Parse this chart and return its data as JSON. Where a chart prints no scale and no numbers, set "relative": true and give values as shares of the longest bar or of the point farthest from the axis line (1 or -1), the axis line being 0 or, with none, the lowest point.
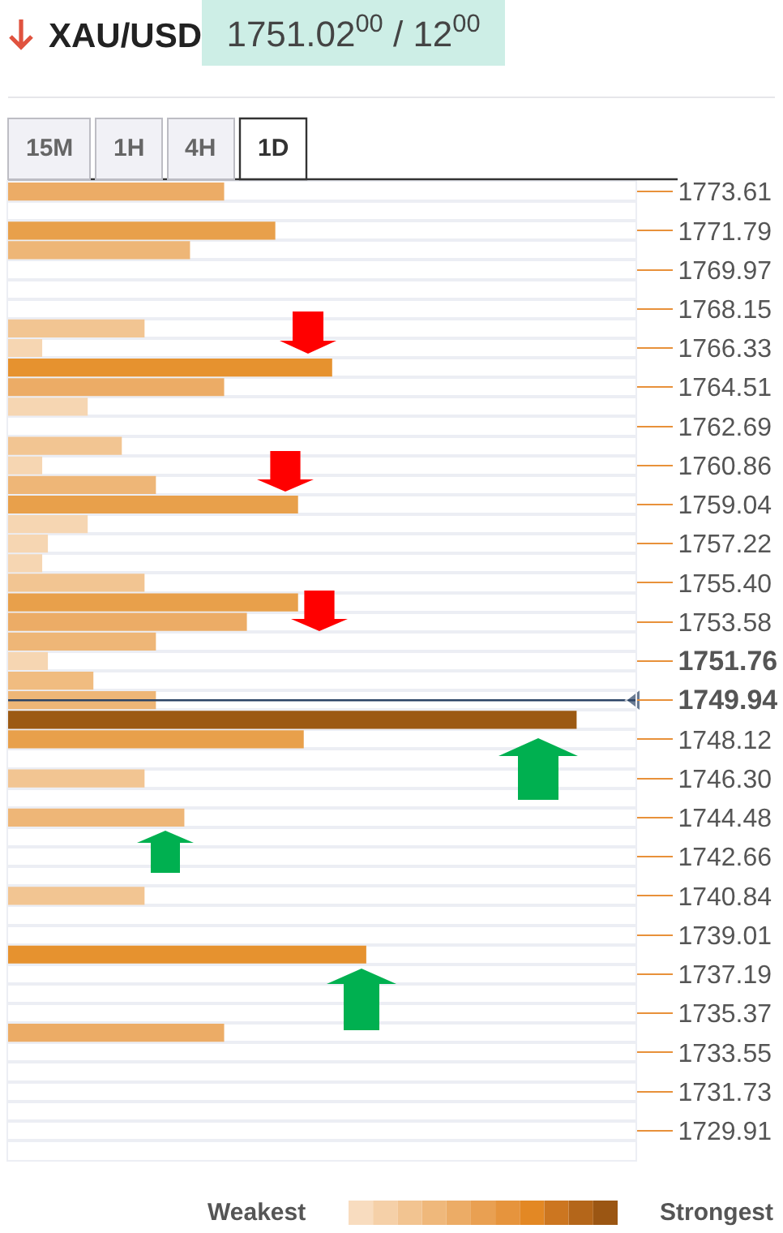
{
  "chart_data": {
    "type": "bar",
    "orientation": "horizontal",
    "relative": true,
    "title": "XAU/USD",
    "subtitle": "1751.02$^{00}$ / 12$^{00}$",
    "categories": [
      "1773.61",
      null,
      "1771.79",
      null,
      "1769.97",
      null,
      "1768.15",
      null,
      "1766.33",
      null,
      "1764.51",
      null,
      "1762.69",
      null,
      "1760.86",
      null,
      "1759.04",
      null,
      "1757.22",
      null,
      "1755.40",
      null,
      "1753.58",
      null,
      "1751.76",
      null,
      "1749.94",
      null,
      "1748.12",
      null,
      "1746.30",
      null,
      "1744.48",
      null,
      "1742.66",
      null,
      "1740.84",
      null,
      "1739.01",
      null,
      "1737.19",
      null,
      "1735.37",
      null,
      "1733.55",
      null,
      "1731.73",
      null,
      "1729.91",
      null
    ],
    "values": [
      0.38,
      null,
      0.47,
      0.32,
      null,
      null,
      null,
      0.24,
      0.06,
      0.57,
      0.38,
      0.14,
      null,
      0.2,
      0.06,
      0.26,
      0.51,
      0.14,
      0.07,
      0.06,
      0.24,
      0.51,
      0.42,
      0.26,
      0.07,
      0.15,
      0.26,
      1,
      0.52,
      null,
      0.24,
      null,
      0.31,
      null,
      null,
      null,
      0.24,
      null,
      null,
      0.63,
      null,
      null,
      null,
      0.38,
      null,
      null,
      null,
      null,
      null,
      null
    ],
    "colors": [
      "#ecac66",
      null,
      "#e8a04b",
      "#eeb677",
      null,
      null,
      null,
      "#f2c592",
      "#f6d6b2",
      "#e6922f",
      "#ecac66",
      "#f6d6b2",
      null,
      "#f2c592",
      "#f6d6b2",
      "#eeb677",
      "#e8a04b",
      "#f6d6b2",
      "#f6d6b2",
      "#f6d6b2",
      "#f2c592",
      "#e8a04b",
      "#ecac66",
      "#eeb677",
      "#f6d6b2",
      "#f0bc80",
      "#eeb677",
      "#9c5a13",
      "#e8a04b",
      null,
      "#f2c592",
      null,
      "#eeb677",
      null,
      null,
      null,
      "#f2c592",
      null,
      null,
      "#e6922f",
      null,
      null,
      null,
      "#ecac66",
      null,
      null,
      null,
      null,
      null,
      null
    ],
    "tick_labels": "y",
    "grid": true,
    "ref_lines": [
      {
        "axis": "y",
        "value": "1749.94",
        "color": "#2c4466"
      }
    ],
    "annotations": [
      "15M",
      "1H",
      "4H",
      "1D",
      "Weakest",
      "Strongest"
    ]
  }
}
